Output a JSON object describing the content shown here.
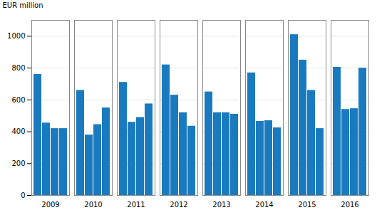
{
  "chart_data": {
    "type": "bar",
    "categories": [
      "2009",
      "2010",
      "2011",
      "2012",
      "2013",
      "2014",
      "2015",
      "2016"
    ],
    "values": [
      [
        760,
        455,
        420,
        420
      ],
      [
        660,
        380,
        445,
        550
      ],
      [
        710,
        460,
        490,
        575
      ],
      [
        820,
        630,
        520,
        435
      ],
      [
        650,
        520,
        520,
        510
      ],
      [
        770,
        465,
        470,
        425
      ],
      [
        1010,
        850,
        660,
        420
      ],
      [
        805,
        540,
        545,
        800
      ]
    ],
    "color": "#1a7abf",
    "ylabel": "EUR million",
    "ylim": [
      0,
      1100
    ],
    "yticks": [
      0,
      200,
      400,
      600,
      800,
      1000
    ],
    "grid": true
  }
}
